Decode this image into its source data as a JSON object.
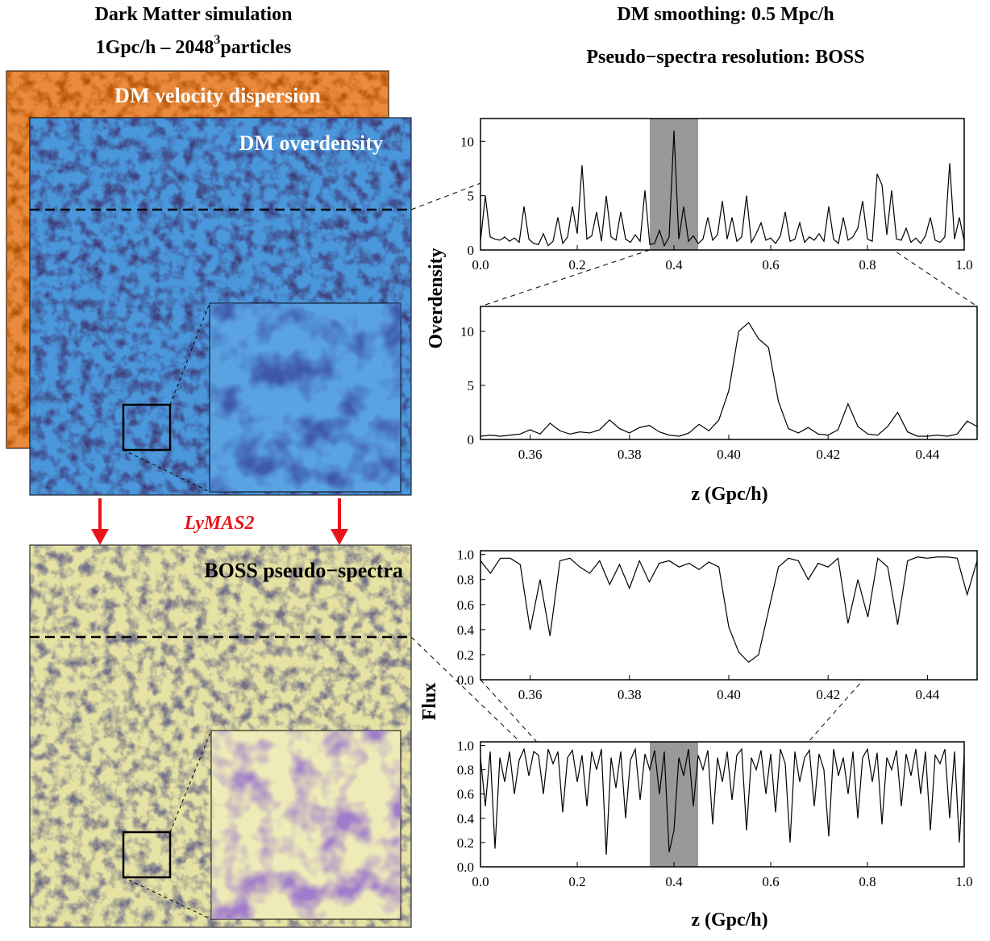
{
  "titles": [
    "DM smoothing: 0.5 Mpc/h",
    "Pseudo−spectra resolution: BOSS"
  ],
  "panels": {
    "title_line1": "Dark Matter simulation",
    "title_line2": "1Gpc/h – 2048",
    "title_sup": "3",
    "title_line2_end": "particles",
    "velocity": "DM velocity dispersion",
    "overdensity": "DM overdensity",
    "method": "LyMAS2",
    "spectra": "BOSS pseudo−spectra"
  },
  "chart_data": [
    {
      "type": "line",
      "ylabel": "Overdensity",
      "xlim": [
        0,
        1
      ],
      "ylim": [
        0,
        12.1
      ],
      "shaded_range": [
        0.35,
        0.45
      ],
      "xticks": [
        {
          "value": 0,
          "label": "0.0"
        },
        0.2,
        0.4,
        0.6,
        0.8,
        {
          "value": 1,
          "label": "1.0"
        }
      ],
      "yticks": [
        0,
        5,
        10
      ],
      "x": [
        0,
        0.01,
        0.02,
        0.03,
        0.04,
        0.05,
        0.06,
        0.07,
        0.08,
        0.09,
        0.1,
        0.11,
        0.12,
        0.13,
        0.14,
        0.15,
        0.16,
        0.17,
        0.18,
        0.19,
        0.2,
        0.21,
        0.22,
        0.23,
        0.24,
        0.25,
        0.26,
        0.27,
        0.28,
        0.29,
        0.3,
        0.31,
        0.32,
        0.33,
        0.34,
        0.35,
        0.36,
        0.37,
        0.38,
        0.39,
        0.4,
        0.41,
        0.42,
        0.43,
        0.44,
        0.45,
        0.46,
        0.47,
        0.48,
        0.49,
        0.5,
        0.51,
        0.52,
        0.53,
        0.54,
        0.55,
        0.56,
        0.57,
        0.58,
        0.59,
        0.6,
        0.61,
        0.62,
        0.63,
        0.64,
        0.65,
        0.66,
        0.67,
        0.68,
        0.69,
        0.7,
        0.71,
        0.72,
        0.73,
        0.74,
        0.75,
        0.76,
        0.77,
        0.78,
        0.79,
        0.8,
        0.81,
        0.82,
        0.83,
        0.84,
        0.85,
        0.86,
        0.87,
        0.88,
        0.89,
        0.9,
        0.91,
        0.92,
        0.93,
        0.94,
        0.95,
        0.96,
        0.97,
        0.98,
        0.99,
        1
      ],
      "series": [
        {
          "color": "#000000",
          "values": [
            0.8,
            5,
            1.2,
            1,
            0.9,
            1.2,
            0.8,
            1.1,
            0.7,
            4,
            1,
            0.6,
            0.5,
            1.5,
            0.4,
            0.8,
            3,
            0.6,
            1.2,
            4,
            1.5,
            7.8,
            1,
            1.3,
            3.5,
            0.8,
            5,
            1.2,
            0.9,
            3.5,
            1,
            0.7,
            1.4,
            0.8,
            5.5,
            0.5,
            0.6,
            1.8,
            0.4,
            1.2,
            11,
            1,
            4,
            0.8,
            1.3,
            0.6,
            1,
            3,
            0.9,
            1.4,
            4.5,
            1,
            3,
            0.8,
            1.2,
            5,
            0.7,
            1.5,
            2.5,
            0.9,
            1.1,
            0.6,
            1.3,
            3.5,
            0.8,
            1,
            2.5,
            0.7,
            1.2,
            0.9,
            1.5,
            0.8,
            4,
            1,
            0.6,
            3,
            0.9,
            1.2,
            2,
            4.5,
            1,
            0.8,
            7,
            6,
            1.4,
            5.5,
            1,
            0.9,
            2,
            0.7,
            1.1,
            0.6,
            1.3,
            3,
            0.9,
            0.7,
            1.2,
            8,
            1,
            3,
            0.8
          ]
        }
      ]
    },
    {
      "type": "line",
      "xlabel": "z (Gpc/h)",
      "xlim": [
        0.35,
        0.45
      ],
      "ylim": [
        0,
        12.3
      ],
      "xticks": [
        0.36,
        0.38,
        {
          "value": 0.4,
          "label": "0.40"
        },
        0.42,
        0.44
      ],
      "yticks": [
        0,
        5,
        10
      ],
      "x": [
        0.35,
        0.352,
        0.354,
        0.356,
        0.358,
        0.36,
        0.362,
        0.364,
        0.366,
        0.368,
        0.37,
        0.372,
        0.374,
        0.376,
        0.378,
        0.38,
        0.382,
        0.384,
        0.386,
        0.388,
        0.39,
        0.392,
        0.394,
        0.396,
        0.398,
        0.4,
        0.402,
        0.404,
        0.406,
        0.408,
        0.41,
        0.412,
        0.414,
        0.416,
        0.418,
        0.42,
        0.422,
        0.424,
        0.426,
        0.428,
        0.43,
        0.432,
        0.434,
        0.436,
        0.438,
        0.44,
        0.442,
        0.444,
        0.446,
        0.448,
        0.45
      ],
      "series": [
        {
          "color": "#000000",
          "values": [
            0.3,
            0.4,
            0.3,
            0.4,
            0.5,
            0.9,
            0.5,
            1.5,
            0.8,
            0.5,
            0.7,
            0.6,
            0.9,
            1.8,
            1.0,
            0.6,
            1.1,
            1.3,
            0.7,
            0.4,
            0.3,
            0.6,
            1.4,
            0.8,
            1.8,
            4.5,
            10.0,
            10.8,
            9.3,
            8.5,
            3.5,
            1.0,
            0.6,
            1.1,
            0.5,
            0.4,
            0.9,
            3.3,
            1.2,
            0.5,
            0.4,
            1.2,
            2.5,
            0.7,
            0.3,
            0.3,
            0.4,
            0.3,
            0.5,
            1.7,
            1.2
          ]
        }
      ]
    },
    {
      "type": "line",
      "ylabel": "Flux",
      "xlim": [
        0.35,
        0.45
      ],
      "ylim": [
        0,
        1.03
      ],
      "xticks": [
        0.36,
        0.38,
        {
          "value": 0.4,
          "label": "0.40"
        },
        0.42,
        0.44
      ],
      "yticks": [
        {
          "value": 0,
          "label": "0.0"
        },
        0.2,
        0.4,
        0.6,
        0.8,
        {
          "value": 1,
          "label": "1.0"
        }
      ],
      "x": [
        0.35,
        0.352,
        0.354,
        0.356,
        0.358,
        0.36,
        0.362,
        0.364,
        0.366,
        0.368,
        0.37,
        0.372,
        0.374,
        0.376,
        0.378,
        0.38,
        0.382,
        0.384,
        0.386,
        0.388,
        0.39,
        0.392,
        0.394,
        0.396,
        0.398,
        0.4,
        0.402,
        0.404,
        0.406,
        0.408,
        0.41,
        0.412,
        0.414,
        0.416,
        0.418,
        0.42,
        0.422,
        0.424,
        0.426,
        0.428,
        0.43,
        0.432,
        0.434,
        0.436,
        0.438,
        0.44,
        0.442,
        0.444,
        0.446,
        0.448,
        0.45
      ],
      "series": [
        {
          "color": "#000000",
          "values": [
            0.95,
            0.85,
            0.97,
            0.97,
            0.92,
            0.4,
            0.8,
            0.35,
            0.95,
            0.97,
            0.9,
            0.85,
            0.95,
            0.76,
            0.92,
            0.73,
            0.95,
            0.78,
            0.93,
            0.95,
            0.9,
            0.93,
            0.88,
            0.94,
            0.9,
            0.42,
            0.22,
            0.14,
            0.2,
            0.55,
            0.9,
            0.97,
            0.95,
            0.8,
            0.93,
            0.9,
            0.97,
            0.45,
            0.8,
            0.5,
            0.97,
            0.9,
            0.44,
            0.95,
            0.98,
            0.97,
            0.98,
            0.98,
            0.97,
            0.68,
            0.95
          ]
        }
      ]
    },
    {
      "type": "line",
      "xlabel": "z (Gpc/h)",
      "xlim": [
        0,
        1
      ],
      "ylim": [
        0,
        1.03
      ],
      "shaded_range": [
        0.35,
        0.45
      ],
      "xticks": [
        {
          "value": 0,
          "label": "0.0"
        },
        0.2,
        0.4,
        0.6,
        0.8,
        {
          "value": 1,
          "label": "1.0"
        }
      ],
      "yticks": [
        {
          "value": 0,
          "label": "0.0"
        },
        0.2,
        0.4,
        0.6,
        0.8,
        {
          "value": 1,
          "label": "1.0"
        }
      ],
      "x": [
        0,
        0.01,
        0.02,
        0.03,
        0.04,
        0.05,
        0.06,
        0.07,
        0.08,
        0.09,
        0.1,
        0.11,
        0.12,
        0.13,
        0.14,
        0.15,
        0.16,
        0.17,
        0.18,
        0.19,
        0.2,
        0.21,
        0.22,
        0.23,
        0.24,
        0.25,
        0.26,
        0.27,
        0.28,
        0.29,
        0.3,
        0.31,
        0.32,
        0.33,
        0.34,
        0.35,
        0.36,
        0.37,
        0.38,
        0.39,
        0.4,
        0.41,
        0.42,
        0.43,
        0.44,
        0.45,
        0.46,
        0.47,
        0.48,
        0.49,
        0.5,
        0.51,
        0.52,
        0.53,
        0.54,
        0.55,
        0.56,
        0.57,
        0.58,
        0.59,
        0.6,
        0.61,
        0.62,
        0.63,
        0.64,
        0.65,
        0.66,
        0.67,
        0.68,
        0.69,
        0.7,
        0.71,
        0.72,
        0.73,
        0.74,
        0.75,
        0.76,
        0.77,
        0.78,
        0.79,
        0.8,
        0.81,
        0.82,
        0.83,
        0.84,
        0.85,
        0.86,
        0.87,
        0.88,
        0.89,
        0.9,
        0.91,
        0.92,
        0.93,
        0.94,
        0.95,
        0.96,
        0.97,
        0.98,
        0.99,
        1
      ],
      "series": [
        {
          "color": "#000000",
          "values": [
            0.9,
            0.5,
            0.95,
            0.15,
            0.9,
            0.7,
            0.95,
            0.6,
            0.88,
            0.97,
            0.75,
            0.95,
            0.92,
            0.6,
            0.97,
            0.85,
            0.95,
            0.45,
            0.9,
            0.96,
            0.7,
            0.92,
            0.5,
            0.95,
            0.8,
            0.97,
            0.1,
            0.9,
            0.65,
            0.95,
            0.4,
            0.88,
            0.97,
            0.55,
            0.93,
            0.8,
            0.96,
            0.6,
            0.95,
            0.12,
            0.3,
            0.9,
            0.75,
            0.97,
            0.5,
            0.92,
            0.8,
            0.96,
            0.35,
            0.9,
            0.7,
            0.95,
            0.55,
            0.92,
            0.97,
            0.3,
            0.9,
            0.8,
            0.96,
            0.6,
            0.93,
            0.45,
            0.97,
            0.85,
            0.2,
            0.95,
            0.7,
            0.9,
            0.96,
            0.5,
            0.93,
            0.8,
            0.25,
            0.97,
            0.75,
            0.9,
            0.6,
            0.95,
            0.4,
            0.9,
            0.97,
            0.7,
            0.94,
            0.35,
            0.9,
            0.8,
            0.96,
            0.5,
            0.93,
            0.75,
            0.97,
            0.6,
            0.95,
            0.3,
            0.92,
            0.85,
            0.97,
            0.4,
            0.95,
            0.2,
            0.93
          ]
        }
      ]
    }
  ]
}
